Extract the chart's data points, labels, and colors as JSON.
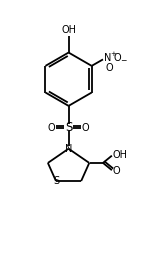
{
  "bg_color": "#ffffff",
  "line_color": "#000000",
  "line_width": 1.3,
  "font_size": 7.0,
  "figsize": [
    1.63,
    2.78
  ],
  "dpi": 100,
  "xlim": [
    0,
    10
  ],
  "ylim": [
    0,
    17
  ]
}
